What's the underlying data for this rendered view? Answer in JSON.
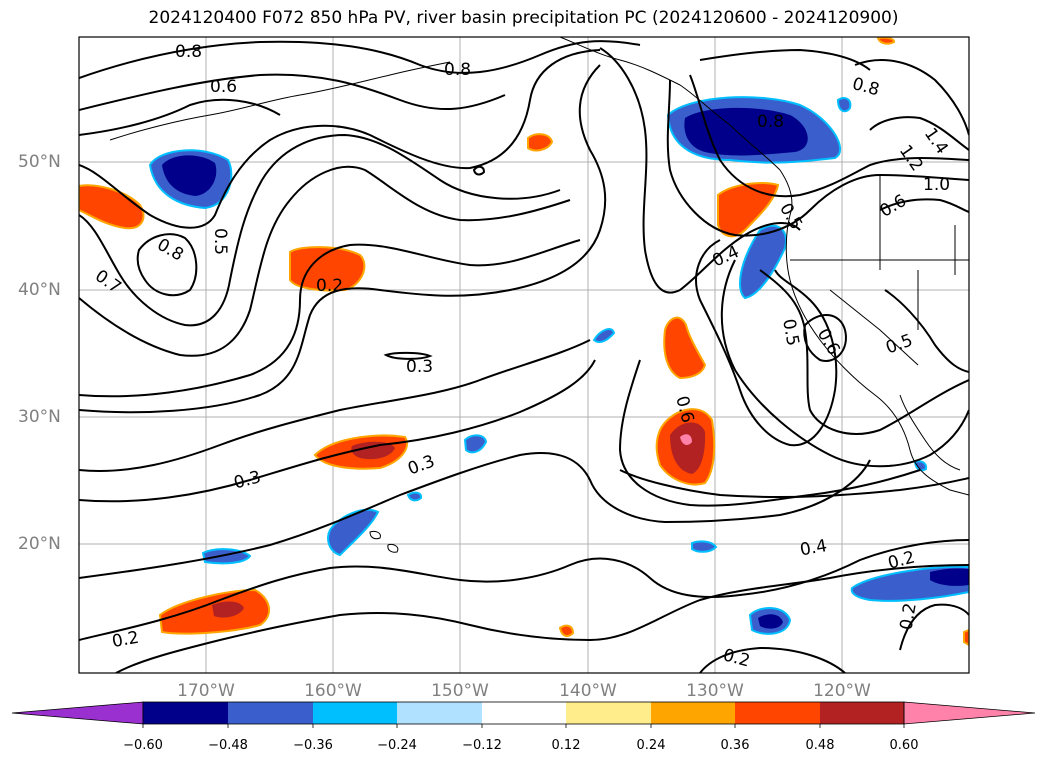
{
  "title": "2024120400 F072 850 hPa PV, river basin precipitation PC (2024120600 - 2024120900)",
  "map": {
    "lat_labels": [
      "50°N",
      "40°N",
      "30°N",
      "20°N"
    ],
    "lon_labels": [
      "170°W",
      "160°W",
      "150°W",
      "140°W",
      "130°W",
      "120°W"
    ],
    "contour_labels": [
      "0.8",
      "0.6",
      "0.8",
      "0.5",
      "0.8",
      "0.7",
      "0.2",
      "0.3",
      "0.3",
      "0.3",
      "0.4",
      "0.5",
      "0.8",
      "0.8",
      "1.2",
      "1.4",
      "1.0",
      "0.6",
      "0.5",
      "0.6",
      "0.5",
      "0.6",
      "0.4",
      "0.2",
      "0.2",
      "0.2",
      "0.2",
      "0.8"
    ],
    "colors": {
      "land_outline": "#000000",
      "gridlines": "#b0b0b0",
      "contours": "#000000"
    }
  },
  "colorbar": {
    "tick_labels": [
      "−0.60",
      "−0.48",
      "−0.36",
      "−0.24",
      "−0.12",
      "0.12",
      "0.24",
      "0.36",
      "0.48",
      "0.60"
    ],
    "colors": [
      "#9b30d0",
      "#00008b",
      "#3a5fcd",
      "#00bfff",
      "#b0e2ff",
      "#ffffff",
      "#ffec8b",
      "#ffa500",
      "#ff4500",
      "#b22222",
      "#ff82ab"
    ]
  }
}
